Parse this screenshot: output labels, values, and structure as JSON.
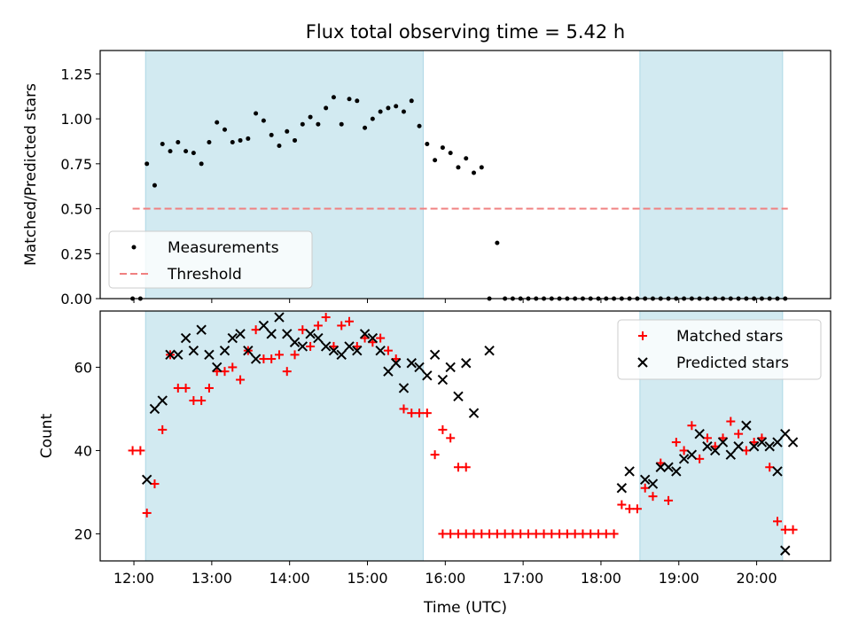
{
  "chart_data": [
    {
      "type": "scatter",
      "title": "Flux total observing time = 5.42 h",
      "ylabel": "Matched/Predicted stars",
      "xlabel": "",
      "x_unit": "time (UTC)",
      "xlim": [
        "11:34",
        "20:57"
      ],
      "ylim": [
        0,
        1.38
      ],
      "y_ticks": [
        "0.00",
        "0.25",
        "0.50",
        "0.75",
        "1.00",
        "1.25"
      ],
      "shaded_intervals": [
        [
          "12:09",
          "15:43"
        ],
        [
          "18:30",
          "20:20"
        ]
      ],
      "shade_color": "#add8e6",
      "legend": {
        "position": "lower-left",
        "entries": [
          "Measurements",
          "Threshold"
        ]
      },
      "threshold": {
        "name": "Threshold",
        "y": 0.5,
        "x_range": [
          "11:59",
          "20:24"
        ],
        "color": "#f08080",
        "style": "dashed"
      },
      "series": [
        {
          "name": "Measurements",
          "color": "#000000",
          "marker": "dot",
          "points": [
            [
              "11:59",
              0.0
            ],
            [
              "12:05",
              0.0
            ],
            [
              "12:10",
              0.75
            ],
            [
              "12:16",
              0.63
            ],
            [
              "12:22",
              0.86
            ],
            [
              "12:28",
              0.82
            ],
            [
              "12:34",
              0.87
            ],
            [
              "12:40",
              0.82
            ],
            [
              "12:46",
              0.81
            ],
            [
              "12:52",
              0.75
            ],
            [
              "12:58",
              0.87
            ],
            [
              "13:04",
              0.98
            ],
            [
              "13:10",
              0.94
            ],
            [
              "13:16",
              0.87
            ],
            [
              "13:22",
              0.88
            ],
            [
              "13:28",
              0.89
            ],
            [
              "13:34",
              1.03
            ],
            [
              "13:40",
              0.99
            ],
            [
              "13:46",
              0.91
            ],
            [
              "13:52",
              0.85
            ],
            [
              "13:58",
              0.93
            ],
            [
              "14:04",
              0.88
            ],
            [
              "14:10",
              0.97
            ],
            [
              "14:16",
              1.01
            ],
            [
              "14:22",
              0.97
            ],
            [
              "14:28",
              1.06
            ],
            [
              "14:34",
              1.12
            ],
            [
              "14:40",
              0.97
            ],
            [
              "14:46",
              1.11
            ],
            [
              "14:52",
              1.1
            ],
            [
              "14:58",
              0.95
            ],
            [
              "15:04",
              1.0
            ],
            [
              "15:10",
              1.04
            ],
            [
              "15:16",
              1.06
            ],
            [
              "15:22",
              1.07
            ],
            [
              "15:28",
              1.04
            ],
            [
              "15:34",
              1.1
            ],
            [
              "15:40",
              0.96
            ],
            [
              "15:46",
              0.86
            ],
            [
              "15:52",
              0.77
            ],
            [
              "15:58",
              0.84
            ],
            [
              "16:04",
              0.81
            ],
            [
              "16:10",
              0.73
            ],
            [
              "16:16",
              0.78
            ],
            [
              "16:22",
              0.7
            ],
            [
              "16:28",
              0.73
            ],
            [
              "16:34",
              0.0
            ],
            [
              "16:40",
              0.31
            ],
            [
              "16:46",
              0.0
            ],
            [
              "16:52",
              0.0
            ],
            [
              "16:58",
              0.0
            ],
            [
              "17:04",
              0.0
            ],
            [
              "17:10",
              0.0
            ],
            [
              "17:16",
              0.0
            ],
            [
              "17:22",
              0.0
            ],
            [
              "17:28",
              0.0
            ],
            [
              "17:34",
              0.0
            ],
            [
              "17:40",
              0.0
            ],
            [
              "17:46",
              0.0
            ],
            [
              "17:52",
              0.0
            ],
            [
              "17:58",
              0.0
            ],
            [
              "18:04",
              0.0
            ],
            [
              "18:10",
              0.0
            ],
            [
              "18:16",
              0.0
            ],
            [
              "18:22",
              0.0
            ],
            [
              "18:28",
              0.0
            ],
            [
              "18:34",
              0.0
            ],
            [
              "18:40",
              0.0
            ],
            [
              "18:46",
              0.0
            ],
            [
              "18:52",
              0.0
            ],
            [
              "18:58",
              0.0
            ],
            [
              "19:04",
              0.0
            ],
            [
              "19:10",
              0.0
            ],
            [
              "19:16",
              0.0
            ],
            [
              "19:22",
              0.0
            ],
            [
              "19:28",
              0.0
            ],
            [
              "19:34",
              0.0
            ],
            [
              "19:40",
              0.0
            ],
            [
              "19:46",
              0.0
            ],
            [
              "19:52",
              0.0
            ],
            [
              "19:58",
              0.0
            ],
            [
              "20:04",
              0.0
            ],
            [
              "20:10",
              0.0
            ],
            [
              "20:16",
              0.0
            ],
            [
              "20:22",
              0.0
            ]
          ]
        }
      ]
    },
    {
      "type": "scatter",
      "title": "",
      "ylabel": "Count",
      "xlabel": "Time (UTC)",
      "xlim": [
        "11:34",
        "20:57"
      ],
      "ylim": [
        13.5,
        73.5
      ],
      "y_ticks": [
        "20",
        "40",
        "60"
      ],
      "x_ticks": [
        "12:00",
        "13:00",
        "14:00",
        "15:00",
        "16:00",
        "17:00",
        "18:00",
        "19:00",
        "20:00"
      ],
      "shaded_intervals": [
        [
          "12:09",
          "15:43"
        ],
        [
          "18:30",
          "20:20"
        ]
      ],
      "legend": {
        "position": "top-right",
        "entries": [
          "Matched stars",
          "Predicted stars"
        ]
      },
      "series": [
        {
          "name": "Matched stars",
          "color": "#ff0000",
          "marker": "plus",
          "points": [
            [
              "11:59",
              40
            ],
            [
              "12:05",
              40
            ],
            [
              "12:10",
              25
            ],
            [
              "12:16",
              32
            ],
            [
              "12:22",
              45
            ],
            [
              "12:28",
              63
            ],
            [
              "12:34",
              55
            ],
            [
              "12:40",
              55
            ],
            [
              "12:46",
              52
            ],
            [
              "12:52",
              52
            ],
            [
              "12:58",
              55
            ],
            [
              "13:04",
              59
            ],
            [
              "13:10",
              59
            ],
            [
              "13:16",
              60
            ],
            [
              "13:22",
              57
            ],
            [
              "13:28",
              64
            ],
            [
              "13:34",
              69
            ],
            [
              "13:40",
              62
            ],
            [
              "13:46",
              62
            ],
            [
              "13:52",
              63
            ],
            [
              "13:58",
              59
            ],
            [
              "14:04",
              63
            ],
            [
              "14:10",
              69
            ],
            [
              "14:16",
              65
            ],
            [
              "14:22",
              70
            ],
            [
              "14:28",
              72
            ],
            [
              "14:34",
              65
            ],
            [
              "14:40",
              70
            ],
            [
              "14:46",
              71
            ],
            [
              "14:52",
              65
            ],
            [
              "14:58",
              67
            ],
            [
              "15:04",
              66
            ],
            [
              "15:10",
              67
            ],
            [
              "15:16",
              64
            ],
            [
              "15:22",
              62
            ],
            [
              "15:28",
              50
            ],
            [
              "15:34",
              49
            ],
            [
              "15:40",
              49
            ],
            [
              "15:46",
              49
            ],
            [
              "15:52",
              39
            ],
            [
              "15:58",
              45
            ],
            [
              "16:04",
              43
            ],
            [
              "16:10",
              36
            ],
            [
              "16:16",
              36
            ],
            [
              "15:58",
              20
            ],
            [
              "16:04",
              20
            ],
            [
              "16:10",
              20
            ],
            [
              "16:16",
              20
            ],
            [
              "16:22",
              20
            ],
            [
              "16:28",
              20
            ],
            [
              "16:34",
              20
            ],
            [
              "16:40",
              20
            ],
            [
              "16:46",
              20
            ],
            [
              "16:52",
              20
            ],
            [
              "16:58",
              20
            ],
            [
              "17:04",
              20
            ],
            [
              "17:10",
              20
            ],
            [
              "17:16",
              20
            ],
            [
              "17:22",
              20
            ],
            [
              "17:28",
              20
            ],
            [
              "17:34",
              20
            ],
            [
              "17:40",
              20
            ],
            [
              "17:46",
              20
            ],
            [
              "17:52",
              20
            ],
            [
              "17:58",
              20
            ],
            [
              "18:04",
              20
            ],
            [
              "18:10",
              20
            ],
            [
              "18:16",
              27
            ],
            [
              "18:22",
              26
            ],
            [
              "18:28",
              26
            ],
            [
              "18:34",
              31
            ],
            [
              "18:40",
              29
            ],
            [
              "18:46",
              37
            ],
            [
              "18:52",
              28
            ],
            [
              "18:58",
              42
            ],
            [
              "19:04",
              40
            ],
            [
              "19:10",
              46
            ],
            [
              "19:16",
              38
            ],
            [
              "19:22",
              43
            ],
            [
              "19:28",
              41
            ],
            [
              "19:34",
              43
            ],
            [
              "19:40",
              47
            ],
            [
              "19:46",
              44
            ],
            [
              "19:52",
              40
            ],
            [
              "19:58",
              42
            ],
            [
              "20:04",
              43
            ],
            [
              "20:10",
              36
            ],
            [
              "20:16",
              23
            ],
            [
              "20:22",
              21
            ],
            [
              "20:28",
              21
            ]
          ]
        },
        {
          "name": "Predicted stars",
          "color": "#000000",
          "marker": "x",
          "points": [
            [
              "12:10",
              33
            ],
            [
              "12:16",
              50
            ],
            [
              "12:22",
              52
            ],
            [
              "12:28",
              63
            ],
            [
              "12:34",
              63
            ],
            [
              "12:40",
              67
            ],
            [
              "12:46",
              64
            ],
            [
              "12:52",
              69
            ],
            [
              "12:58",
              63
            ],
            [
              "13:04",
              60
            ],
            [
              "13:10",
              64
            ],
            [
              "13:16",
              67
            ],
            [
              "13:22",
              68
            ],
            [
              "13:28",
              64
            ],
            [
              "13:34",
              62
            ],
            [
              "13:40",
              70
            ],
            [
              "13:46",
              68
            ],
            [
              "13:52",
              72
            ],
            [
              "13:58",
              68
            ],
            [
              "14:04",
              66
            ],
            [
              "14:10",
              65
            ],
            [
              "14:16",
              68
            ],
            [
              "14:22",
              67
            ],
            [
              "14:28",
              65
            ],
            [
              "14:34",
              64
            ],
            [
              "14:40",
              63
            ],
            [
              "14:46",
              65
            ],
            [
              "14:52",
              64
            ],
            [
              "14:58",
              68
            ],
            [
              "15:04",
              67
            ],
            [
              "15:10",
              64
            ],
            [
              "15:16",
              59
            ],
            [
              "15:22",
              61
            ],
            [
              "15:28",
              55
            ],
            [
              "15:34",
              61
            ],
            [
              "15:40",
              60
            ],
            [
              "15:46",
              58
            ],
            [
              "15:52",
              63
            ],
            [
              "15:58",
              57
            ],
            [
              "16:04",
              60
            ],
            [
              "16:10",
              53
            ],
            [
              "16:16",
              61
            ],
            [
              "16:22",
              49
            ],
            [
              "16:34",
              64
            ],
            [
              "18:16",
              31
            ],
            [
              "18:22",
              35
            ],
            [
              "18:34",
              33
            ],
            [
              "18:40",
              32
            ],
            [
              "18:46",
              36
            ],
            [
              "18:52",
              36
            ],
            [
              "18:58",
              35
            ],
            [
              "19:04",
              38
            ],
            [
              "19:10",
              39
            ],
            [
              "19:16",
              44
            ],
            [
              "19:22",
              41
            ],
            [
              "19:28",
              40
            ],
            [
              "19:34",
              42
            ],
            [
              "19:40",
              39
            ],
            [
              "19:46",
              41
            ],
            [
              "19:52",
              46
            ],
            [
              "19:58",
              41
            ],
            [
              "20:04",
              42
            ],
            [
              "20:10",
              41
            ],
            [
              "20:16",
              42
            ],
            [
              "20:22",
              44
            ],
            [
              "20:28",
              42
            ],
            [
              "20:16",
              35
            ],
            [
              "20:22",
              16
            ]
          ]
        }
      ]
    }
  ]
}
